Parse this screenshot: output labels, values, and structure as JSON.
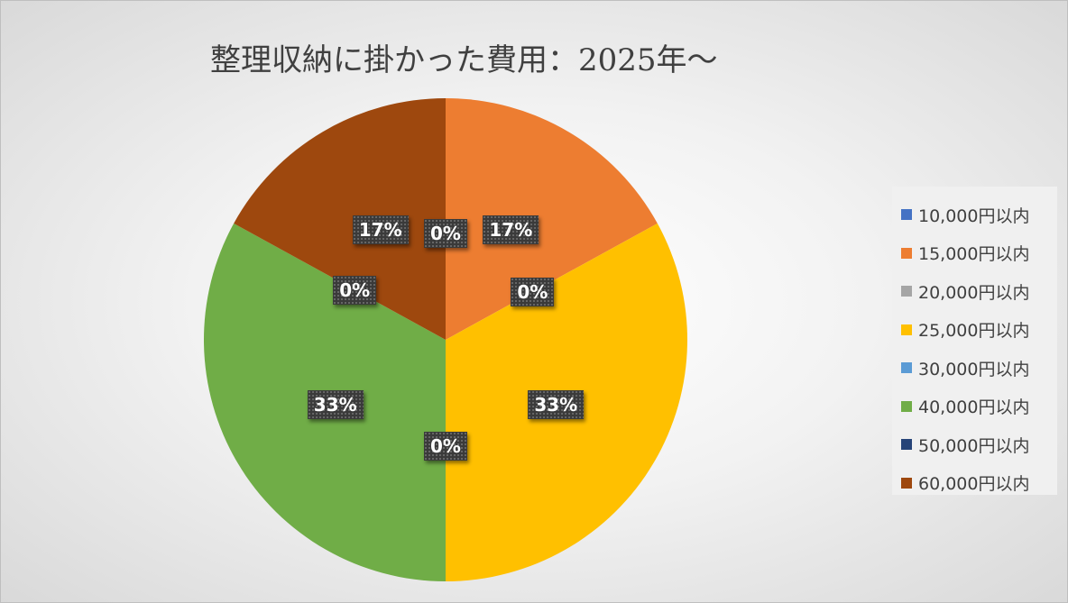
{
  "chart_data": {
    "type": "pie",
    "title": "整理収納に掛かった費用：2025年～",
    "categories": [
      "10,000円以内",
      "15,000円以内",
      "20,000円以内",
      "25,000円以内",
      "30,000円以内",
      "40,000円以内",
      "50,000円以内",
      "60,000円以内"
    ],
    "values": [
      0,
      17,
      0,
      33,
      0,
      33,
      0,
      17
    ],
    "labels": [
      "0%",
      "17%",
      "0%",
      "33%",
      "0%",
      "33%",
      "0%",
      "17%"
    ],
    "colors": [
      "#4472C4",
      "#ED7D31",
      "#A5A5A5",
      "#FFC000",
      "#5B9BD5",
      "#70AD47",
      "#264478",
      "#9E480E"
    ],
    "legend_position": "right"
  }
}
